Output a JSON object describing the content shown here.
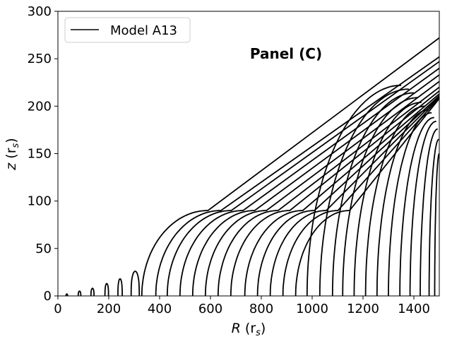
{
  "chart_data": {
    "type": "line",
    "xlabel_main": "R",
    "xlabel_unit": "(r",
    "xlabel_sub": "s",
    "xlabel_close": ")",
    "ylabel_main": "z",
    "ylabel_unit": "(r",
    "ylabel_sub": "s",
    "ylabel_close": ")",
    "xlim": [
      0,
      1500
    ],
    "ylim": [
      0,
      300
    ],
    "xticks": [
      0,
      200,
      400,
      600,
      800,
      1000,
      1200,
      1400
    ],
    "yticks": [
      0,
      50,
      100,
      150,
      200,
      250,
      300
    ],
    "annotation": "Panel (C)",
    "grid": false,
    "legend": {
      "position": "top-left",
      "label": "Model A13"
    },
    "loops": [
      {
        "r0": 32,
        "r1": 38,
        "h": 2
      },
      {
        "r0": 80,
        "r1": 90,
        "h": 5
      },
      {
        "r0": 130,
        "r1": 142,
        "h": 8
      },
      {
        "r0": 185,
        "r1": 199,
        "h": 13
      },
      {
        "r0": 236,
        "r1": 253,
        "h": 18
      },
      {
        "r0": 288,
        "r1": 320,
        "h": 26
      }
    ],
    "jets": [
      {
        "r0": 330,
        "rt": 1500,
        "z": 272
      },
      {
        "r0": 385,
        "rt": 1500,
        "z": 252
      },
      {
        "r0": 430,
        "rt": 1500,
        "z": 247
      },
      {
        "r0": 480,
        "rt": 1500,
        "z": 240
      },
      {
        "r0": 530,
        "rt": 1500,
        "z": 233
      },
      {
        "r0": 580,
        "rt": 1500,
        "z": 226
      },
      {
        "r0": 630,
        "rt": 1500,
        "z": 220
      },
      {
        "r0": 680,
        "rt": 1500,
        "z": 216
      },
      {
        "r0": 735,
        "rt": 1500,
        "z": 213
      },
      {
        "r0": 785,
        "rt": 1500,
        "z": 211
      },
      {
        "r0": 835,
        "rt": 1500,
        "z": 210
      },
      {
        "r0": 885,
        "rt": 1500,
        "z": 209
      },
      {
        "r0": 935,
        "rt": 1500,
        "z": 208
      }
    ],
    "fans": [
      {
        "r0": 980,
        "rt": 1350,
        "z": 222
      },
      {
        "r0": 1030,
        "rt": 1380,
        "z": 218
      },
      {
        "r0": 1080,
        "rt": 1400,
        "z": 214
      },
      {
        "r0": 1120,
        "rt": 1415,
        "z": 209
      },
      {
        "r0": 1165,
        "rt": 1430,
        "z": 204
      },
      {
        "r0": 1210,
        "rt": 1445,
        "z": 200
      },
      {
        "r0": 1255,
        "rt": 1458,
        "z": 196
      },
      {
        "r0": 1300,
        "rt": 1470,
        "z": 193
      },
      {
        "r0": 1345,
        "rt": 1480,
        "z": 188
      },
      {
        "r0": 1385,
        "rt": 1488,
        "z": 184
      },
      {
        "r0": 1425,
        "rt": 1494,
        "z": 176
      },
      {
        "r0": 1460,
        "rt": 1498,
        "z": 165
      },
      {
        "r0": 1482,
        "rt": 1500,
        "z": 150
      }
    ]
  }
}
